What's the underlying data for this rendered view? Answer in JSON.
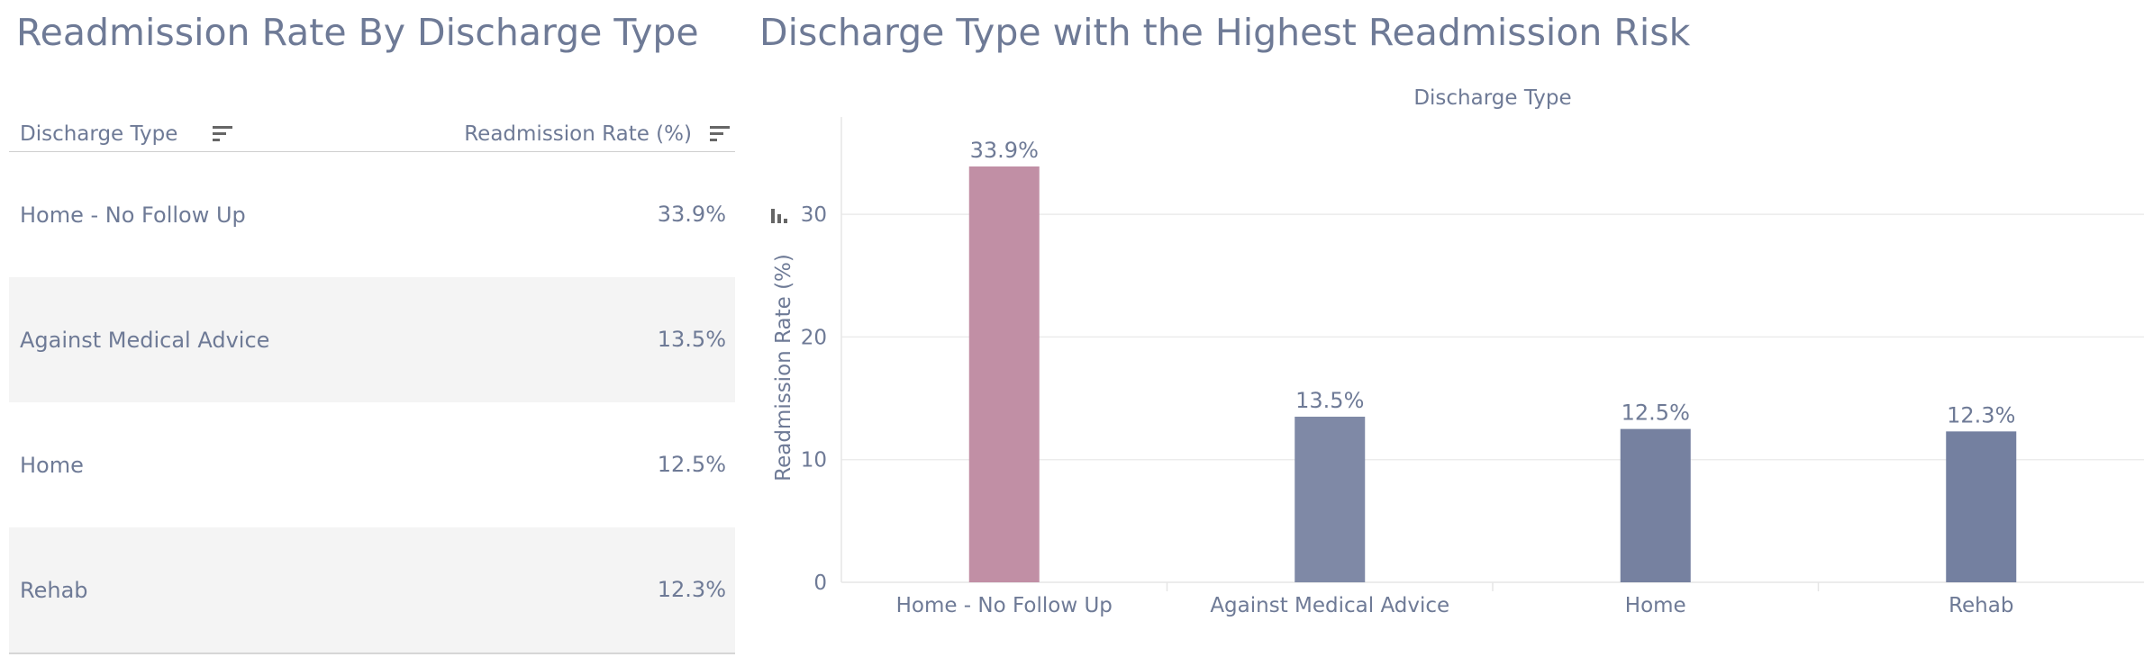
{
  "table_panel": {
    "title": "Readmission Rate By Discharge Type",
    "headers": {
      "type": "Discharge Type",
      "rate": "Readmission Rate (%)"
    },
    "rows": [
      {
        "type": "Home - No Follow Up",
        "rate": "33.9%"
      },
      {
        "type": "Against Medical Advice",
        "rate": "13.5%"
      },
      {
        "type": "Home",
        "rate": "12.5%"
      },
      {
        "type": "Rehab",
        "rate": "12.3%"
      }
    ]
  },
  "chart_panel": {
    "title": "Discharge Type with the Highest Readmission Risk"
  },
  "chart_data": {
    "type": "bar",
    "title": "Discharge Type with the Highest Readmission Risk",
    "header_label": "Discharge Type",
    "xlabel": "",
    "ylabel": "Readmission Rate (%)",
    "categories": [
      "Home - No Follow Up",
      "Against Medical Advice",
      "Home",
      "Rehab"
    ],
    "values": [
      33.9,
      13.5,
      12.5,
      12.3
    ],
    "value_labels": [
      "33.9%",
      "13.5%",
      "12.5%",
      "12.3%"
    ],
    "colors": [
      "#c18fa5",
      "#7f89a6",
      "#7681a0",
      "#7480a0"
    ],
    "ylim": [
      0,
      38
    ],
    "yticks": [
      0,
      10,
      20,
      30
    ],
    "grid": true,
    "legend": "none"
  }
}
